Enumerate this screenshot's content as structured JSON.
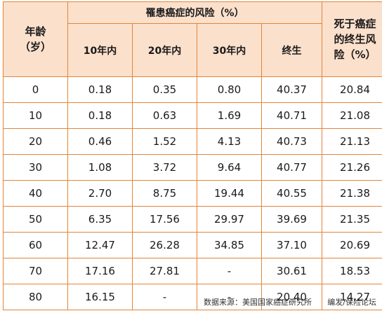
{
  "table": {
    "col_age": "年龄\n（岁）",
    "col_group_title": "罹患癌症的风险（%）",
    "col_10y": "10年内",
    "col_20y": "20年内",
    "col_30y": "30年内",
    "col_lifetime": "终生",
    "col_death": "死于癌症的终生风险（%）",
    "rows": [
      {
        "age": "0",
        "y10": "0.18",
        "y20": "0.35",
        "y30": "0.80",
        "life": "40.37",
        "death": "20.84"
      },
      {
        "age": "10",
        "y10": "0.18",
        "y20": "0.63",
        "y30": "1.69",
        "life": "40.71",
        "death": "21.08"
      },
      {
        "age": "20",
        "y10": "0.46",
        "y20": "1.52",
        "y30": "4.13",
        "life": "40.73",
        "death": "21.13"
      },
      {
        "age": "30",
        "y10": "1.08",
        "y20": "3.72",
        "y30": "9.64",
        "life": "40.77",
        "death": "21.26"
      },
      {
        "age": "40",
        "y10": "2.70",
        "y20": "8.75",
        "y30": "19.44",
        "life": "40.55",
        "death": "21.38"
      },
      {
        "age": "50",
        "y10": "6.35",
        "y20": "17.56",
        "y30": "29.97",
        "life": "39.69",
        "death": "21.35"
      },
      {
        "age": "60",
        "y10": "12.47",
        "y20": "26.28",
        "y30": "34.85",
        "life": "37.10",
        "death": "20.69"
      },
      {
        "age": "70",
        "y10": "17.16",
        "y20": "27.81",
        "y30": "-",
        "life": "30.61",
        "death": "18.53"
      },
      {
        "age": "80",
        "y10": "16.15",
        "y20": "-",
        "y30": "-",
        "life": "20.40",
        "death": "14.27"
      }
    ]
  },
  "footer": {
    "source": "数据来源：美国国家癌症研究所",
    "editor": "编发/保险论坛"
  },
  "colors": {
    "header_bg": "#fbe0cc",
    "border": "#e2853a"
  }
}
